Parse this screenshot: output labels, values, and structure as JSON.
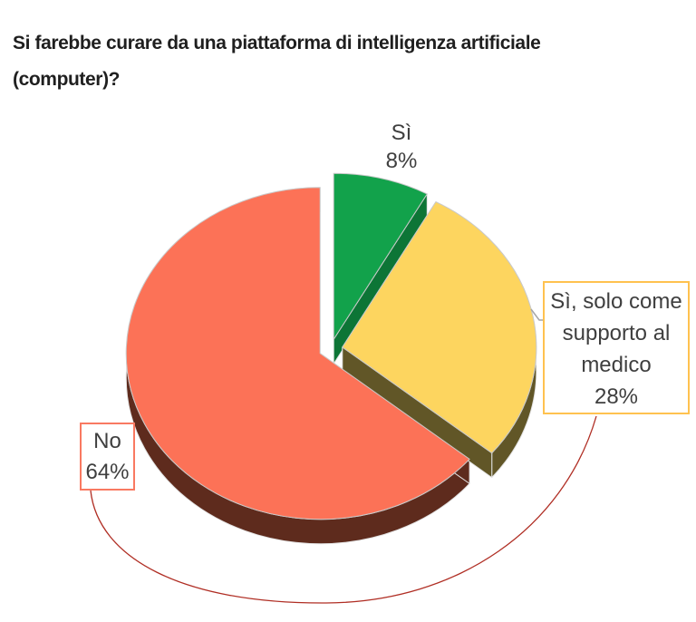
{
  "title": {
    "lines": [
      "Si farebbe curare da una piattaforma di intelligenza artificiale",
      "(computer)?"
    ],
    "full_text": "Si farebbe curare da una piattaforma di intelligenza artificiale (computer)?"
  },
  "chart_data": {
    "type": "pie",
    "is_3d": true,
    "start_angle_deg": 0,
    "direction": "clockwise",
    "unit": "%",
    "legend_position": "none",
    "title": "Si farebbe curare da una piattaforma di intelligenza artificiale (computer)?",
    "slices": [
      {
        "id": "si",
        "label": "Sì",
        "value": 8,
        "color": "#12A24B",
        "side_color": "#0D7536",
        "label_lines": [
          "Sì",
          "8%"
        ]
      },
      {
        "id": "si-solo-supporto",
        "label": "Sì, solo come supporto al medico",
        "value": 28,
        "color": "#FDD55F",
        "side_color": "#615627",
        "label_border_color": "#FFC24F",
        "label_lines": [
          "Sì, solo come",
          "supporto al",
          "medico",
          "28%"
        ]
      },
      {
        "id": "no",
        "label": "No",
        "value": 64,
        "color": "#FC7257",
        "side_color": "#5E2B1D",
        "label_border_color": "#F97961",
        "label_lines": [
          "No",
          "64%"
        ]
      }
    ],
    "leader_lines": {
      "no_color": "#B02E24",
      "si_solo_color": "#A6A6A6"
    },
    "label_text_color": "#3F3F3F"
  }
}
